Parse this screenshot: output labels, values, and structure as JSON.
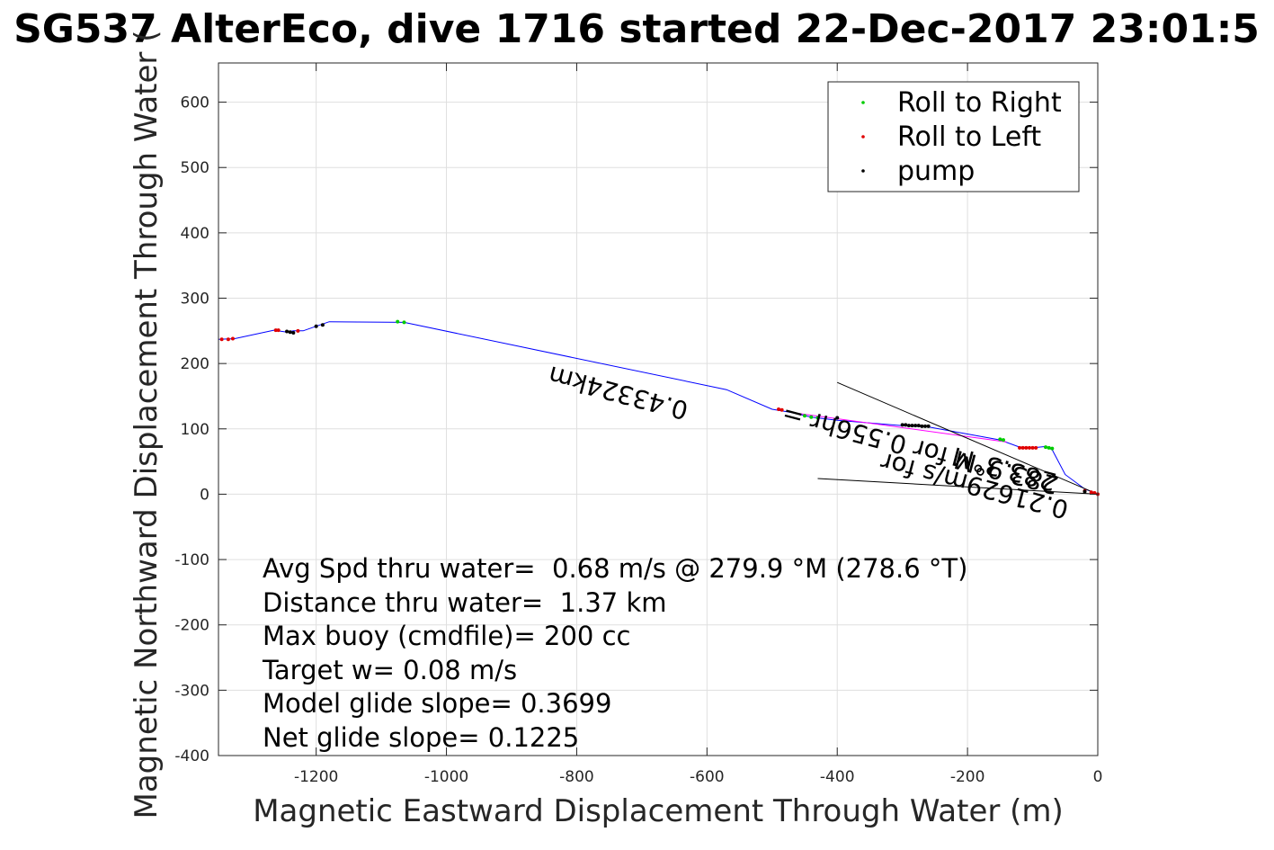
{
  "chart_data": {
    "type": "line",
    "title": "SG537 AlterEco, dive 1716 started 22-Dec-2017 23:01:5",
    "xlabel": "Magnetic Eastward Displacement Through Water (m)",
    "ylabel": "Magnetic Northward Displacement Through Water (",
    "xlim": [
      -1350,
      0
    ],
    "ylim": [
      -400,
      660
    ],
    "xticks": [
      -1200,
      -1000,
      -800,
      -600,
      -400,
      -200,
      0
    ],
    "xtick_labels": [
      "-1200",
      "-1000",
      "-800",
      "-600",
      "-400",
      "-200",
      "0"
    ],
    "yticks": [
      -400,
      -300,
      -200,
      -100,
      0,
      100,
      200,
      300,
      400,
      500,
      600
    ],
    "ytick_labels": [
      "-400",
      "-300",
      "-200",
      "-100",
      "0",
      "100",
      "200",
      "300",
      "400",
      "500",
      "600"
    ],
    "grid": true,
    "legend": {
      "position": "top-right",
      "entries": [
        {
          "label": "Roll to Right",
          "color": "#00cc00"
        },
        {
          "label": "Roll to Left",
          "color": "#e00000"
        },
        {
          "label": "pump",
          "color": "#000000"
        }
      ]
    },
    "track": {
      "name": "track",
      "color": "#0000ff",
      "x": [
        -1350,
        -1325,
        -1265,
        -1245,
        -1235,
        -1220,
        -1200,
        -1180,
        -1065,
        -570,
        -500,
        -470,
        -440,
        -400,
        -300,
        -260,
        -150,
        -120,
        -100,
        -80,
        -70,
        -50,
        -20,
        0
      ],
      "y": [
        237,
        238,
        251,
        248,
        250,
        250,
        257,
        264,
        263,
        160,
        130,
        125,
        118,
        113,
        105,
        103,
        83,
        72,
        71,
        73,
        68,
        30,
        8,
        0
      ]
    },
    "roll_right": {
      "x": [
        -1075,
        -1065,
        -450,
        -440,
        -430,
        -150,
        -145,
        -80,
        -75,
        -70
      ],
      "y": [
        264,
        263,
        120,
        118,
        117,
        84,
        83,
        72,
        71,
        70
      ]
    },
    "roll_left": {
      "x": [
        -1345,
        -1335,
        -1328,
        -1262,
        -1258,
        -1228,
        -490,
        -485,
        -120,
        -115,
        -110,
        -105,
        -100,
        -95,
        -20,
        -10,
        -5,
        0
      ],
      "y": [
        237,
        237,
        238,
        251,
        251,
        250,
        130,
        129,
        71,
        71,
        71,
        71,
        71,
        71,
        5,
        3,
        2,
        0
      ]
    },
    "pump": {
      "x": [
        -1245,
        -1240,
        -1235,
        -1200,
        -1190,
        -400,
        -300,
        -295,
        -290,
        -285,
        -280,
        -275,
        -270,
        -265,
        -260,
        -20
      ],
      "y": [
        249,
        248,
        247,
        257,
        259,
        117,
        106,
        106,
        105,
        105,
        105,
        105,
        104,
        104,
        104,
        4
      ]
    },
    "current_lines": [
      {
        "x": [
          -400,
          0
        ],
        "y": [
          171,
          0
        ]
      },
      {
        "x": [
          -430,
          0
        ],
        "y": [
          24,
          0
        ]
      }
    ],
    "annotations": [
      "0.43324km",
      "283.9°M for 0.556hr =",
      "0.21629m/s for",
      "283.3°M"
    ],
    "stats": [
      "Avg Spd thru water=  0.68 m/s @ 279.9 °M (278.6 °T)",
      "Distance thru water=  1.37 km",
      "Max buoy (cmdfile)= 200 cc",
      "Target w= 0.08 m/s",
      "Model glide slope= 0.3699",
      "Net glide slope= 0.1225"
    ]
  }
}
